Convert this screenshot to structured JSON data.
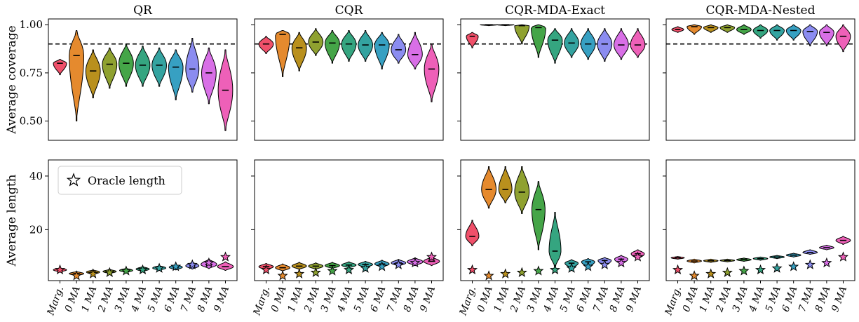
{
  "chart_data": {
    "type": "violin",
    "categories": [
      "Marg.",
      "0 MA",
      "1 MA",
      "2 MA",
      "3 MA",
      "4 MA",
      "5 MA",
      "6 MA",
      "7 MA",
      "8 MA",
      "9 MA"
    ],
    "colors": [
      "#f0506a",
      "#e58a2e",
      "#b9901d",
      "#8fa130",
      "#45a548",
      "#35a580",
      "#34a3a0",
      "#37a0c2",
      "#8b8cf0",
      "#d86fe6",
      "#ee60b8"
    ],
    "coverage_row": {
      "ylabel": "Average coverage",
      "ylim": [
        0.4,
        1.03
      ],
      "yticks": [
        "1.00",
        "0.75",
        "0.50"
      ],
      "ytick_values": [
        1.0,
        0.75,
        0.5
      ],
      "target_line": 0.9,
      "panels": [
        {
          "title": "QR",
          "median": [
            0.8,
            0.84,
            0.76,
            0.795,
            0.8,
            0.79,
            0.79,
            0.78,
            0.77,
            0.75,
            0.66
          ],
          "min": [
            0.74,
            0.5,
            0.62,
            0.67,
            0.68,
            0.68,
            0.68,
            0.61,
            0.65,
            0.59,
            0.45
          ],
          "max": [
            0.82,
            0.97,
            0.87,
            0.88,
            0.9,
            0.89,
            0.88,
            0.87,
            0.93,
            0.88,
            0.87
          ],
          "width": [
            0.5,
            0.55,
            0.55,
            0.55,
            0.55,
            0.55,
            0.55,
            0.55,
            0.5,
            0.55,
            0.55
          ]
        },
        {
          "title": "CQR",
          "median": [
            0.9,
            0.95,
            0.88,
            0.91,
            0.905,
            0.9,
            0.895,
            0.895,
            0.87,
            0.845,
            0.77
          ],
          "min": [
            0.85,
            0.73,
            0.76,
            0.84,
            0.8,
            0.81,
            0.81,
            0.77,
            0.8,
            0.77,
            0.6
          ],
          "max": [
            0.94,
            0.97,
            0.96,
            0.98,
            0.97,
            0.97,
            0.97,
            0.96,
            0.95,
            0.96,
            0.9
          ],
          "width": [
            0.55,
            0.55,
            0.55,
            0.55,
            0.55,
            0.55,
            0.55,
            0.55,
            0.55,
            0.55,
            0.55
          ]
        },
        {
          "title": "CQR-MDA-Exact",
          "median": [
            0.94,
            1.0,
            1.0,
            0.995,
            0.985,
            0.92,
            0.905,
            0.9,
            0.9,
            0.895,
            0.895
          ],
          "min": [
            0.88,
            0.995,
            0.995,
            0.9,
            0.83,
            0.8,
            0.83,
            0.82,
            0.81,
            0.82,
            0.83
          ],
          "max": [
            0.96,
            1.0,
            1.0,
            1.0,
            1.0,
            0.98,
            0.98,
            0.98,
            0.98,
            0.98,
            0.98
          ],
          "width": [
            0.45,
            0.65,
            0.65,
            0.55,
            0.55,
            0.55,
            0.55,
            0.55,
            0.55,
            0.55,
            0.55
          ]
        },
        {
          "title": "CQR-MDA-Nested",
          "median": [
            0.975,
            0.99,
            0.985,
            0.985,
            0.975,
            0.97,
            0.97,
            0.97,
            0.965,
            0.96,
            0.94
          ],
          "min": [
            0.96,
            0.95,
            0.96,
            0.96,
            0.95,
            0.93,
            0.92,
            0.92,
            0.89,
            0.89,
            0.86
          ],
          "max": [
            0.99,
            1.0,
            1.0,
            1.0,
            1.0,
            1.0,
            1.0,
            1.0,
            1.0,
            1.0,
            1.0
          ],
          "width": [
            0.45,
            0.55,
            0.55,
            0.55,
            0.55,
            0.55,
            0.55,
            0.55,
            0.55,
            0.55,
            0.55
          ]
        }
      ]
    },
    "length_row": {
      "ylabel": "Average length",
      "ylim": [
        1,
        46
      ],
      "yticks": [
        "40",
        "20"
      ],
      "ytick_values": [
        40,
        20
      ],
      "legend": {
        "label": "Oracle length",
        "position": "upper-left",
        "panel": 0
      },
      "oracle_length": [
        5.0,
        2.8,
        3.5,
        4.0,
        4.6,
        5.0,
        5.6,
        6.2,
        6.9,
        7.6,
        9.8
      ],
      "panels": [
        {
          "median": [
            5.0,
            3.6,
            4.2,
            4.4,
            4.8,
            5.3,
            5.7,
            6.0,
            6.5,
            7.0,
            6.2
          ],
          "min": [
            4.2,
            2.8,
            3.2,
            3.6,
            4.0,
            4.4,
            4.8,
            5.0,
            5.3,
            5.5,
            4.8
          ],
          "max": [
            5.8,
            4.4,
            5.0,
            5.2,
            5.6,
            6.2,
            6.6,
            7.0,
            7.9,
            9.0,
            8.0
          ],
          "width": [
            0.5,
            0.55,
            0.5,
            0.5,
            0.5,
            0.5,
            0.5,
            0.5,
            0.5,
            0.6,
            0.6
          ]
        },
        {
          "median": [
            6.2,
            5.8,
            6.4,
            6.4,
            6.6,
            6.8,
            7.0,
            7.2,
            7.6,
            8.0,
            8.2
          ],
          "min": [
            5.0,
            4.6,
            5.2,
            5.2,
            5.5,
            5.7,
            5.9,
            6.0,
            6.4,
            6.6,
            6.6
          ],
          "max": [
            7.4,
            7.2,
            7.8,
            7.6,
            7.8,
            8.0,
            8.2,
            8.6,
            8.9,
            9.5,
            9.8
          ],
          "width": [
            0.55,
            0.55,
            0.55,
            0.55,
            0.55,
            0.55,
            0.55,
            0.55,
            0.55,
            0.6,
            0.6
          ]
        },
        {
          "median": [
            17.5,
            35.0,
            35.0,
            34.0,
            27.5,
            12.0,
            7.5,
            8.0,
            8.5,
            9.0,
            11.0
          ],
          "min": [
            14.0,
            28.0,
            30.0,
            26.0,
            12.5,
            6.0,
            5.5,
            6.0,
            6.5,
            7.0,
            9.0
          ],
          "max": [
            23.5,
            43.5,
            43.5,
            43.5,
            38.0,
            26.5,
            8.8,
            9.2,
            9.6,
            10.4,
            12.5
          ],
          "width": [
            0.5,
            0.55,
            0.5,
            0.55,
            0.5,
            0.45,
            0.5,
            0.5,
            0.5,
            0.5,
            0.5
          ]
        },
        {
          "median": [
            9.5,
            8.3,
            8.4,
            8.5,
            8.8,
            9.2,
            9.8,
            10.5,
            11.5,
            13.3,
            16.0
          ],
          "min": [
            9.0,
            7.6,
            7.8,
            8.0,
            8.2,
            8.6,
            9.2,
            9.8,
            10.8,
            12.5,
            14.5
          ],
          "max": [
            10.0,
            9.0,
            9.0,
            9.0,
            9.4,
            9.8,
            10.4,
            11.2,
            12.5,
            14.2,
            17.5
          ],
          "width": [
            0.5,
            0.55,
            0.55,
            0.55,
            0.55,
            0.55,
            0.55,
            0.55,
            0.55,
            0.55,
            0.55
          ]
        }
      ]
    }
  }
}
